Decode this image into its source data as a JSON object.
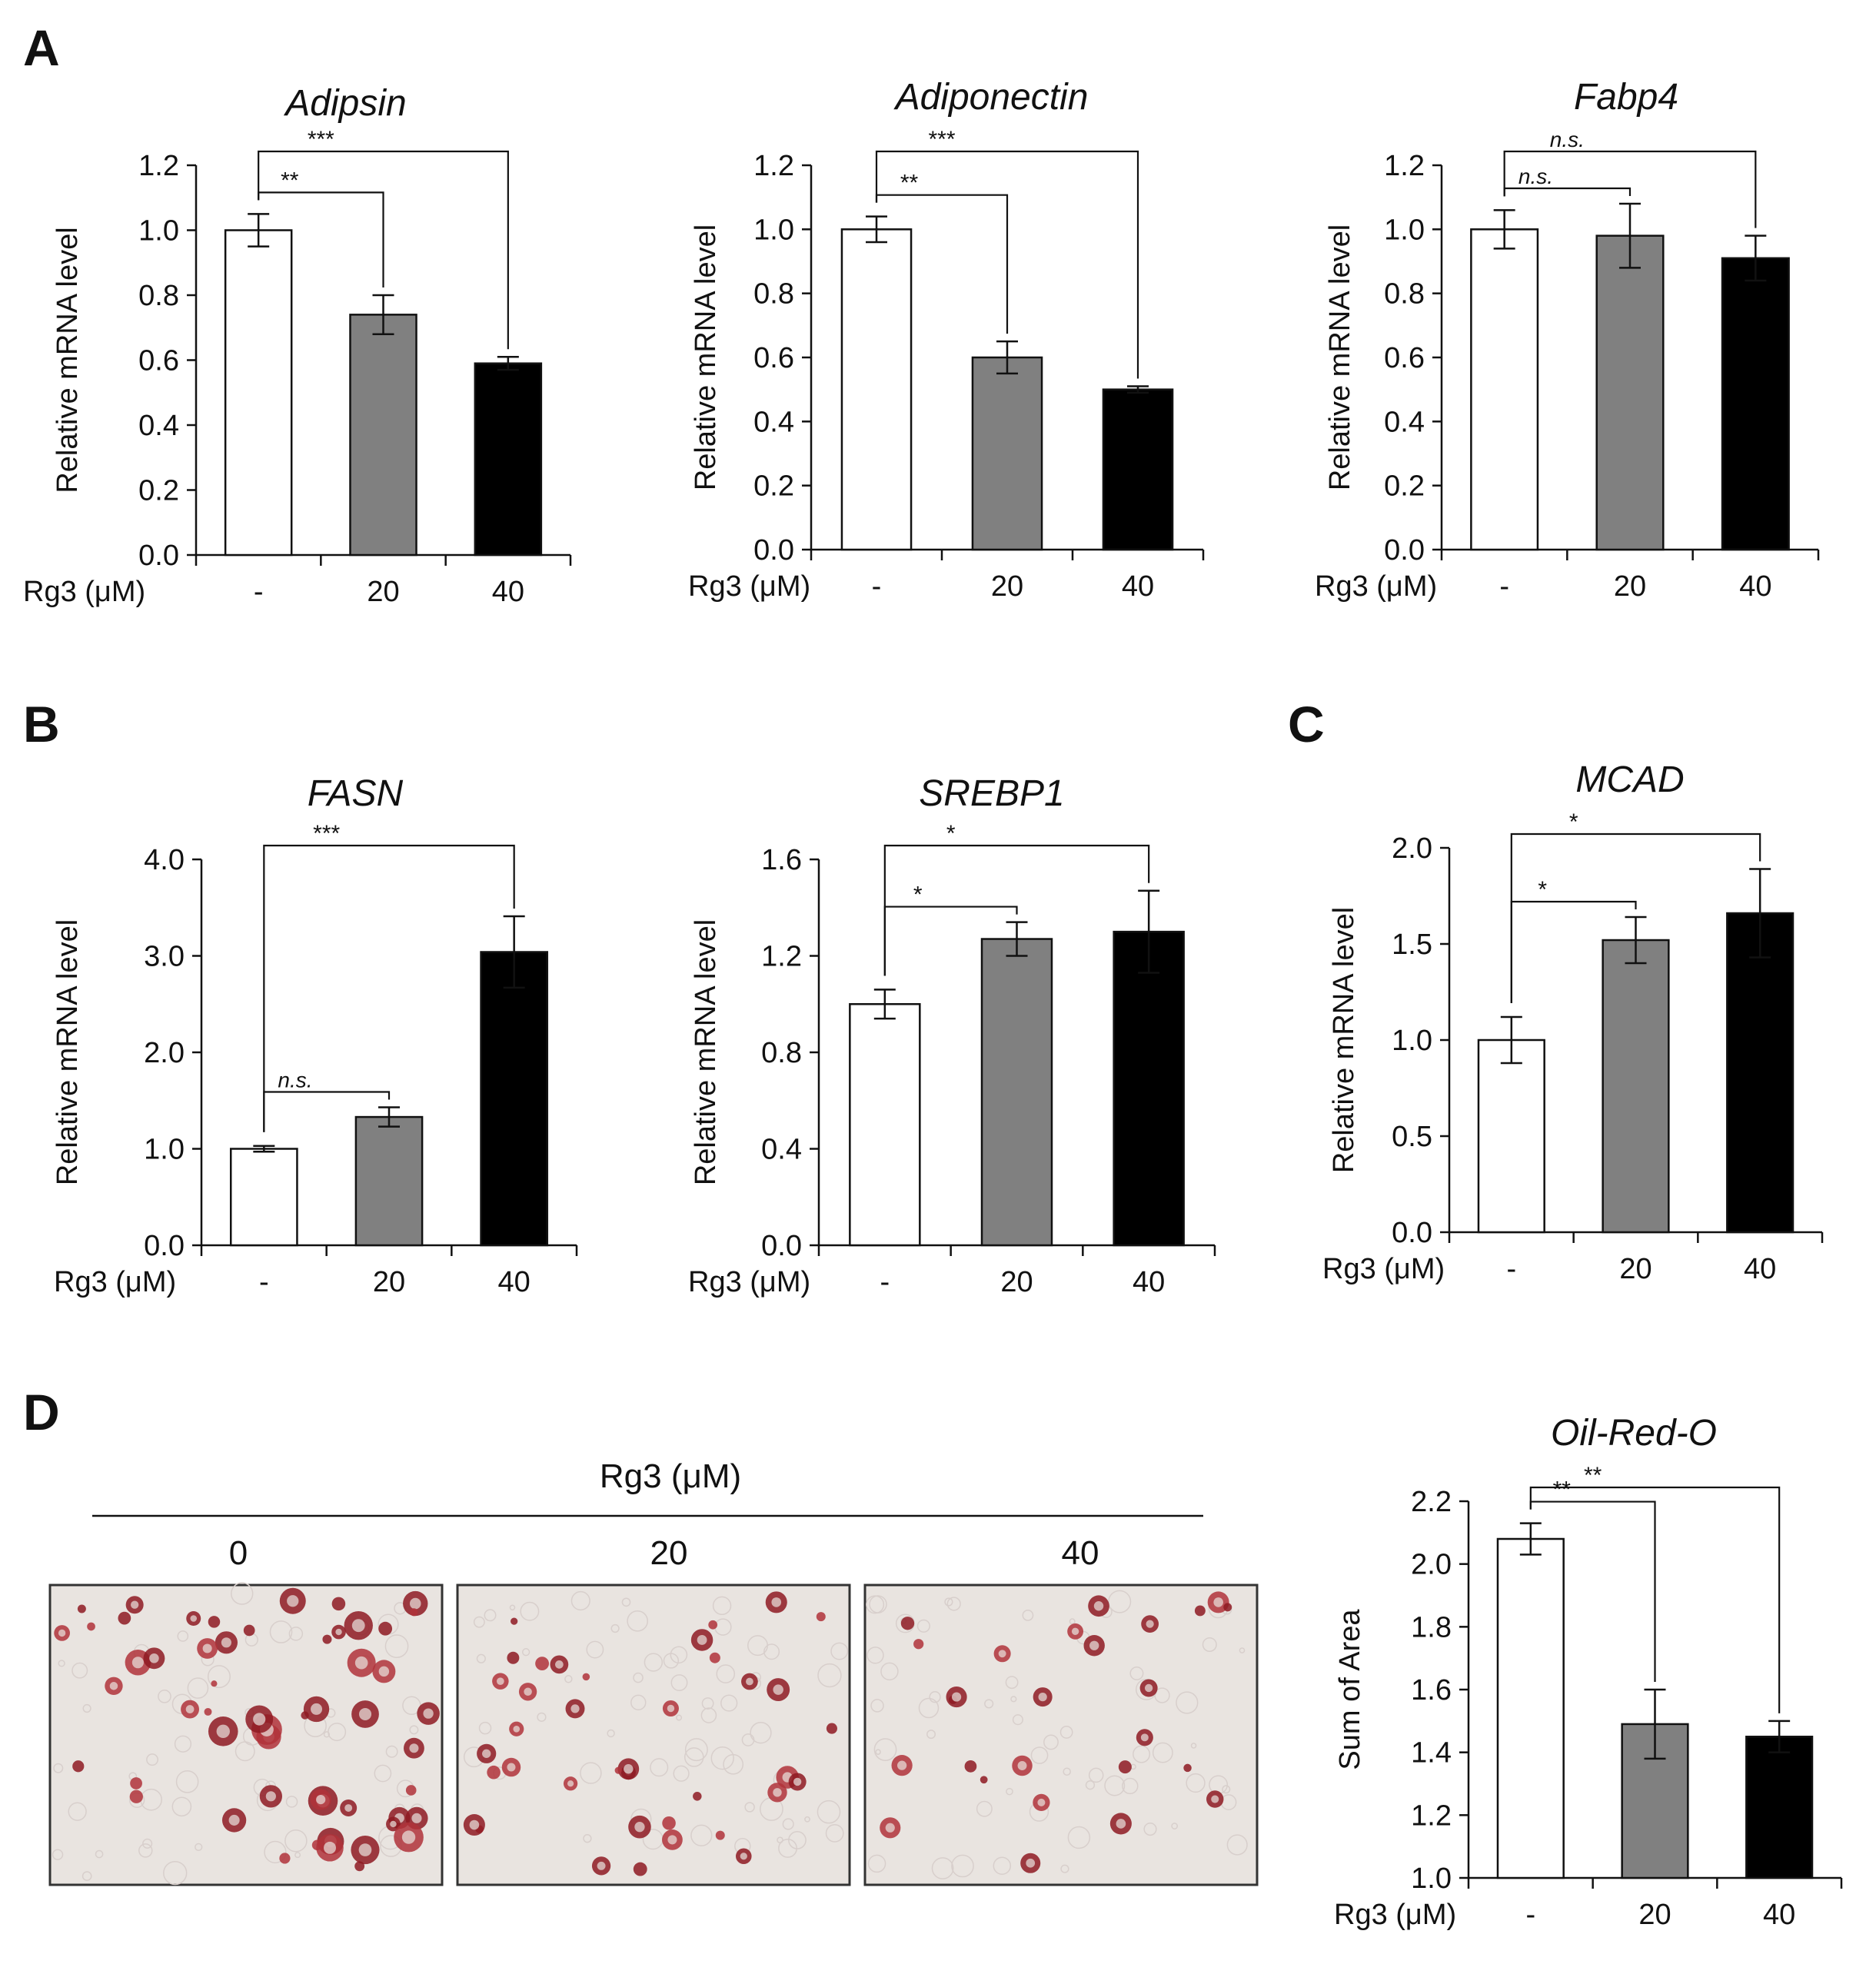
{
  "panels": {
    "A": "A",
    "B": "B",
    "C": "C",
    "D": "D"
  },
  "colors": {
    "control": "#ffffff",
    "rg3_20": "#808080",
    "rg3_40": "#000000"
  },
  "chart_data": [
    {
      "id": "adipsin",
      "panel": "A",
      "type": "bar",
      "title": "Adipsin",
      "ylabel": "Relative mRNA level",
      "xlabel": "Rg3 (μM)",
      "categories": [
        "-",
        "20",
        "40"
      ],
      "values": [
        1.0,
        0.74,
        0.59
      ],
      "errors": [
        0.05,
        0.06,
        0.02
      ],
      "ylim": [
        0,
        1.2
      ],
      "yticks": [
        "0.0",
        "0.2",
        "0.4",
        "0.6",
        "0.8",
        "1.0",
        "1.2"
      ],
      "significance": [
        {
          "from": 0,
          "to": 1,
          "label": "**",
          "italic": false
        },
        {
          "from": 0,
          "to": 2,
          "label": "***",
          "italic": false
        }
      ]
    },
    {
      "id": "adiponectin",
      "panel": "A",
      "type": "bar",
      "title": "Adiponectin",
      "ylabel": "Relative mRNA level",
      "xlabel": "Rg3 (μM)",
      "categories": [
        "-",
        "20",
        "40"
      ],
      "values": [
        1.0,
        0.6,
        0.5
      ],
      "errors": [
        0.04,
        0.05,
        0.01
      ],
      "ylim": [
        0,
        1.2
      ],
      "yticks": [
        "0.0",
        "0.2",
        "0.4",
        "0.6",
        "0.8",
        "1.0",
        "1.2"
      ],
      "significance": [
        {
          "from": 0,
          "to": 1,
          "label": "**",
          "italic": false
        },
        {
          "from": 0,
          "to": 2,
          "label": "***",
          "italic": false
        }
      ]
    },
    {
      "id": "fabp4",
      "panel": "A",
      "type": "bar",
      "title": "Fabp4",
      "ylabel": "Relative mRNA level",
      "xlabel": "Rg3 (μM)",
      "categories": [
        "-",
        "20",
        "40"
      ],
      "values": [
        1.0,
        0.98,
        0.91
      ],
      "errors": [
        0.06,
        0.1,
        0.07
      ],
      "ylim": [
        0,
        1.2
      ],
      "yticks": [
        "0.0",
        "0.2",
        "0.4",
        "0.6",
        "0.8",
        "1.0",
        "1.2"
      ],
      "significance": [
        {
          "from": 0,
          "to": 1,
          "label": "n.s.",
          "italic": true
        },
        {
          "from": 0,
          "to": 2,
          "label": "n.s.",
          "italic": true
        }
      ]
    },
    {
      "id": "fasn",
      "panel": "B",
      "type": "bar",
      "title": "FASN",
      "ylabel": "Relative mRNA level",
      "xlabel": "Rg3 (μM)",
      "categories": [
        "-",
        "20",
        "40"
      ],
      "values": [
        1.0,
        1.33,
        3.04
      ],
      "errors": [
        0.03,
        0.1,
        0.37
      ],
      "ylim": [
        0,
        4.0
      ],
      "yticks": [
        "0.0",
        "1.0",
        "2.0",
        "3.0",
        "4.0"
      ],
      "significance": [
        {
          "from": 0,
          "to": 1,
          "label": "n.s.",
          "italic": true
        },
        {
          "from": 0,
          "to": 2,
          "label": "***",
          "italic": false
        }
      ]
    },
    {
      "id": "srebp1",
      "panel": "B",
      "type": "bar",
      "title": "SREBP1",
      "ylabel": "Relative mRNA level",
      "xlabel": "Rg3 (μM)",
      "categories": [
        "-",
        "20",
        "40"
      ],
      "values": [
        1.0,
        1.27,
        1.3
      ],
      "errors": [
        0.06,
        0.07,
        0.17
      ],
      "ylim": [
        0,
        1.6
      ],
      "yticks": [
        "0.0",
        "0.4",
        "0.8",
        "1.2",
        "1.6"
      ],
      "significance": [
        {
          "from": 0,
          "to": 1,
          "label": "*",
          "italic": false
        },
        {
          "from": 0,
          "to": 2,
          "label": "*",
          "italic": false
        }
      ]
    },
    {
      "id": "mcad",
      "panel": "C",
      "type": "bar",
      "title": "MCAD",
      "ylabel": "Relative mRNA level",
      "xlabel": "Rg3 (μM)",
      "categories": [
        "-",
        "20",
        "40"
      ],
      "values": [
        1.0,
        1.52,
        1.66
      ],
      "errors": [
        0.12,
        0.12,
        0.23
      ],
      "ylim": [
        0,
        2.0
      ],
      "yticks": [
        "0.0",
        "0.5",
        "1.0",
        "1.5",
        "2.0"
      ],
      "significance": [
        {
          "from": 0,
          "to": 1,
          "label": "*",
          "italic": false
        },
        {
          "from": 0,
          "to": 2,
          "label": "*",
          "italic": false
        }
      ]
    },
    {
      "id": "oilredo",
      "panel": "D",
      "type": "bar",
      "title": "Oil-Red-O",
      "ylabel": "Sum of Area",
      "xlabel": "Rg3 (μM)",
      "categories": [
        "-",
        "20",
        "40"
      ],
      "values": [
        2.08,
        1.49,
        1.45
      ],
      "errors": [
        0.05,
        0.11,
        0.05
      ],
      "ylim": [
        1.0,
        2.2
      ],
      "yticks": [
        "1.0",
        "1.2",
        "1.4",
        "1.6",
        "1.8",
        "2.0",
        "2.2"
      ],
      "significance": [
        {
          "from": 0,
          "to": 1,
          "label": "**",
          "italic": false
        },
        {
          "from": 0,
          "to": 2,
          "label": "**",
          "italic": false
        }
      ]
    }
  ],
  "micrographs": {
    "header": "Rg3 (μM)",
    "labels": [
      "0",
      "20",
      "40"
    ],
    "stain": "Oil Red O stained lipid droplets"
  }
}
